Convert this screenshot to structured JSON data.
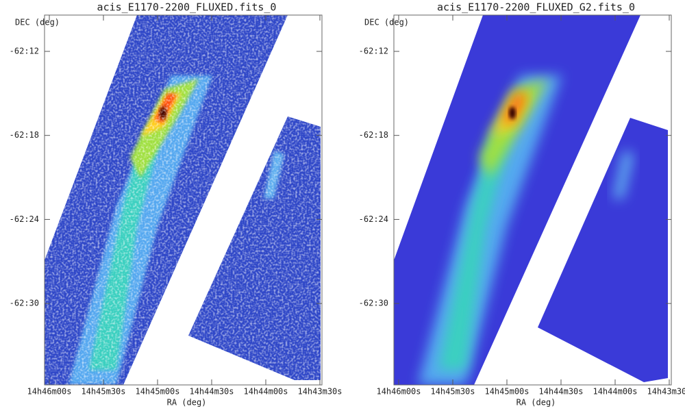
{
  "panels": [
    {
      "title": "acis_E1170-2200_FLUXED.fits_0",
      "y_label": "DEC (deg)",
      "x_label": "RA (deg)",
      "y_ticks": [
        "-62:12",
        "-62:18",
        "-62:24",
        "-62:30"
      ],
      "x_ticks": [
        "14h46m00s",
        "14h45m30s",
        "14h45m00s",
        "14h44m30s",
        "14h44m00s",
        "14h43m30s"
      ]
    },
    {
      "title": "acis_E1170-2200_FLUXED_G2.fits_0",
      "y_label": "DEC (deg)",
      "x_label": "RA (deg)",
      "y_ticks": [
        "-62:12",
        "-62:18",
        "-62:24",
        "-62:30"
      ],
      "x_ticks": [
        "14h46m00s",
        "14h45m30s",
        "14h45m00s",
        "14h44m30s",
        "14h44m00s",
        "14h43m30s"
      ]
    }
  ]
}
